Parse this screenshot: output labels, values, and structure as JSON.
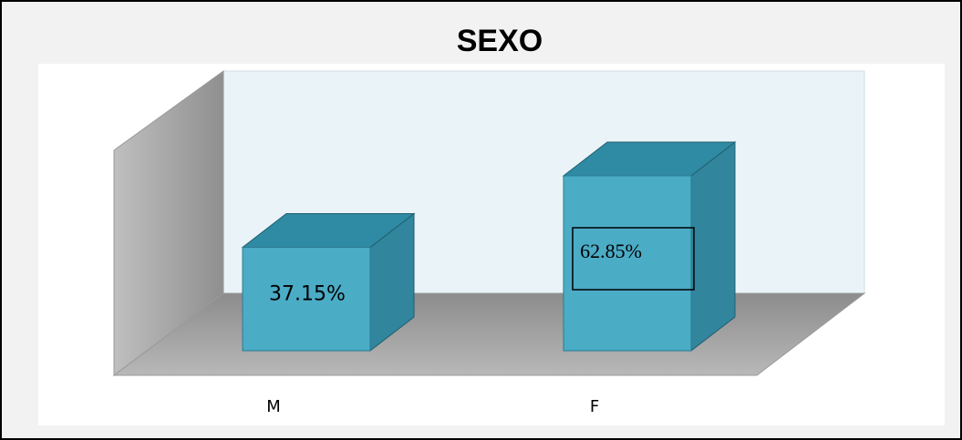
{
  "chart_data": {
    "type": "bar3d",
    "title": "SEXO",
    "categories": [
      "M",
      "F"
    ],
    "values": [
      37.15,
      62.85
    ],
    "value_labels": [
      "37.15%",
      "62.85%"
    ],
    "color": "#4bacc6"
  }
}
